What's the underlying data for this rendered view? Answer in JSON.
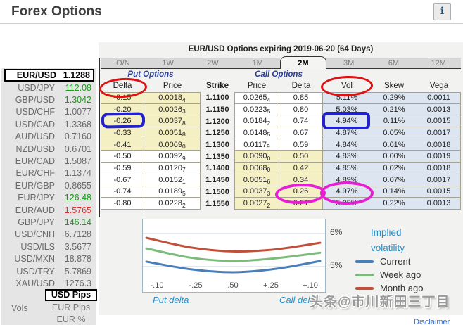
{
  "header": {
    "title": "Forex Options",
    "info_icon": "i"
  },
  "sidebar": {
    "pairs": [
      {
        "name": "EUR/USD",
        "value": "1.1288",
        "state": "selected"
      },
      {
        "name": "USD/JPY",
        "value": "112.08",
        "state": "up"
      },
      {
        "name": "GBP/USD",
        "value": "1.3042",
        "state": "up"
      },
      {
        "name": "USD/CHF",
        "value": "1.0077",
        "state": "flat"
      },
      {
        "name": "USD/CAD",
        "value": "1.3368",
        "state": "flat"
      },
      {
        "name": "AUD/USD",
        "value": "0.7160",
        "state": "flat"
      },
      {
        "name": "NZD/USD",
        "value": "0.6701",
        "state": "flat"
      },
      {
        "name": "EUR/CAD",
        "value": "1.5087",
        "state": "flat"
      },
      {
        "name": "EUR/CHF",
        "value": "1.1374",
        "state": "flat"
      },
      {
        "name": "EUR/GBP",
        "value": "0.8655",
        "state": "flat"
      },
      {
        "name": "EUR/JPY",
        "value": "126.48",
        "state": "up"
      },
      {
        "name": "EUR/AUD",
        "value": "1.5765",
        "state": "down"
      },
      {
        "name": "GBP/JPY",
        "value": "146.14",
        "state": "up"
      },
      {
        "name": "USD/CNH",
        "value": "6.7128",
        "state": "flat"
      },
      {
        "name": "USD/ILS",
        "value": "3.5677",
        "state": "flat"
      },
      {
        "name": "USD/MXN",
        "value": "18.878",
        "state": "flat"
      },
      {
        "name": "USD/TRY",
        "value": "5.7869",
        "state": "flat"
      },
      {
        "name": "XAU/USD",
        "value": "1276.3",
        "state": "flat"
      }
    ],
    "vols_label": "Vols",
    "modes": [
      {
        "label": "USD Pips",
        "selected": true
      },
      {
        "label": "EUR Pips",
        "selected": false
      },
      {
        "label": "EUR %",
        "selected": false
      }
    ],
    "colors": {
      "up": "#149c14",
      "down": "#e02c2c",
      "neutral": "#6b6b6b"
    }
  },
  "options_panel": {
    "title": "EUR/USD Options expiring 2019-06-20 (64 Days)",
    "tabs": [
      {
        "label": "O/N",
        "selected": false
      },
      {
        "label": "1W",
        "selected": false
      },
      {
        "label": "2W",
        "selected": false
      },
      {
        "label": "1M",
        "selected": false
      },
      {
        "label": "2M",
        "selected": true
      },
      {
        "label": "3M",
        "selected": false
      },
      {
        "label": "6M",
        "selected": false
      },
      {
        "label": "12M",
        "selected": false
      }
    ],
    "put_group_label": "Put Options",
    "call_group_label": "Call Options",
    "columns": {
      "put_delta": "Delta",
      "put_price": "Price",
      "strike": "Strike",
      "call_price": "Price",
      "call_delta": "Delta",
      "vol": "Vol",
      "skew": "Skew",
      "vega": "Vega"
    },
    "rows": [
      {
        "put_delta": "-0.15",
        "put_price": "0.0018",
        "put_price_sub": "4",
        "strike": "1.1100",
        "call_price": "0.0265",
        "call_price_sub": "4",
        "call_delta": "0.85",
        "vol": "5.11%",
        "skew": "0.29%",
        "vega": "0.0011",
        "put_otm": true
      },
      {
        "put_delta": "-0.20",
        "put_price": "0.0026",
        "put_price_sub": "3",
        "strike": "1.1150",
        "call_price": "0.0223",
        "call_price_sub": "5",
        "call_delta": "0.80",
        "vol": "5.03%",
        "skew": "0.21%",
        "vega": "0.0013",
        "put_otm": true
      },
      {
        "put_delta": "-0.26",
        "put_price": "0.0037",
        "put_price_sub": "8",
        "strike": "1.1200",
        "call_price": "0.0184",
        "call_price_sub": "2",
        "call_delta": "0.74",
        "vol": "4.94%",
        "skew": "0.11%",
        "vega": "0.0015",
        "put_otm": true
      },
      {
        "put_delta": "-0.33",
        "put_price": "0.0051",
        "put_price_sub": "8",
        "strike": "1.1250",
        "call_price": "0.0148",
        "call_price_sub": "5",
        "call_delta": "0.67",
        "vol": "4.87%",
        "skew": "0.05%",
        "vega": "0.0017",
        "put_otm": true
      },
      {
        "put_delta": "-0.41",
        "put_price": "0.0069",
        "put_price_sub": "0",
        "strike": "1.1300",
        "call_price": "0.0117",
        "call_price_sub": "9",
        "call_delta": "0.59",
        "vol": "4.84%",
        "skew": "0.01%",
        "vega": "0.0018",
        "put_otm": true
      },
      {
        "put_delta": "-0.50",
        "put_price": "0.0092",
        "put_price_sub": "9",
        "strike": "1.1350",
        "call_price": "0.0090",
        "call_price_sub": "0",
        "call_delta": "0.50",
        "vol": "4.83%",
        "skew": "0.00%",
        "vega": "0.0019",
        "put_otm": false
      },
      {
        "put_delta": "-0.59",
        "put_price": "0.0120",
        "put_price_sub": "7",
        "strike": "1.1400",
        "call_price": "0.0068",
        "call_price_sub": "0",
        "call_delta": "0.42",
        "vol": "4.85%",
        "skew": "0.02%",
        "vega": "0.0018",
        "put_otm": false
      },
      {
        "put_delta": "-0.67",
        "put_price": "0.0152",
        "put_price_sub": "1",
        "strike": "1.1450",
        "call_price": "0.0051",
        "call_price_sub": "6",
        "call_delta": "0.34",
        "vol": "4.89%",
        "skew": "0.07%",
        "vega": "0.0017",
        "put_otm": false
      },
      {
        "put_delta": "-0.74",
        "put_price": "0.0189",
        "put_price_sub": "5",
        "strike": "1.1500",
        "call_price": "0.0037",
        "call_price_sub": "3",
        "call_delta": "0.26",
        "vol": "4.97%",
        "skew": "0.14%",
        "vega": "0.0015",
        "put_otm": false
      },
      {
        "put_delta": "-0.80",
        "put_price": "0.0228",
        "put_price_sub": "2",
        "strike": "1.1550",
        "call_price": "0.0027",
        "call_price_sub": "2",
        "call_delta": "0.21",
        "vol": "5.05%",
        "skew": "0.22%",
        "vega": "0.0013",
        "put_otm": false
      }
    ],
    "highlight_colors": {
      "otm_yellow": "#f5efc4",
      "vol_blue": "#dde6f0"
    }
  },
  "chart_data": {
    "type": "line",
    "x_ticks": [
      "-.10",
      "-.25",
      ".50",
      "+.25",
      "+.10"
    ],
    "x_axis_left_label": "Put delta",
    "x_axis_right_label": "Call delta",
    "y_ticks": [
      "6%",
      "5%"
    ],
    "gridline_values": [
      6,
      5
    ],
    "ylim": [
      4.6,
      6.4
    ],
    "legend_title": "Implied volatility",
    "legend_position": "right",
    "series": [
      {
        "name": "Current",
        "color": "#4a7ebb",
        "values": [
          5.15,
          4.92,
          4.83,
          4.93,
          5.17
        ]
      },
      {
        "name": "Week ago",
        "color": "#7cbb7c",
        "values": [
          5.55,
          5.27,
          5.17,
          5.25,
          5.42
        ]
      },
      {
        "name": "Month ago",
        "color": "#c0503a",
        "values": [
          5.87,
          5.58,
          5.46,
          5.52,
          5.72
        ]
      }
    ]
  },
  "annotations": [
    {
      "shape": "ellipse",
      "color": "#dd1212",
      "target": "put-delta-header"
    },
    {
      "shape": "ellipse",
      "color": "#dd1212",
      "target": "vol-header"
    },
    {
      "shape": "rect",
      "color": "#2222cc",
      "target": "put-delta-row-3"
    },
    {
      "shape": "rect",
      "color": "#2222cc",
      "target": "vol-row-3"
    },
    {
      "shape": "ellipse",
      "color": "#e81ed4",
      "target": "call-delta-row-9"
    },
    {
      "shape": "ellipse",
      "color": "#e81ed4",
      "target": "vol-row-9"
    }
  ],
  "watermark": "头条@市川新田三丁目",
  "disclaimer": "Disclaimer"
}
